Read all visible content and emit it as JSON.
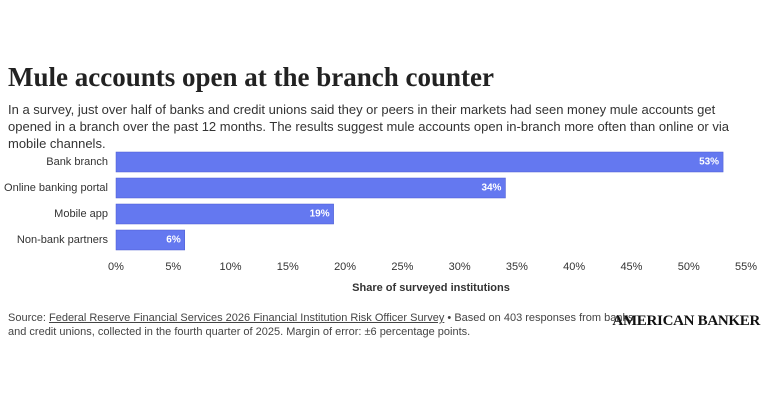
{
  "chart_data": {
    "type": "bar",
    "orientation": "horizontal",
    "title": "Mule accounts open at the branch counter",
    "subtitle": "In a survey, just over half of banks and credit unions said they or peers in their markets had seen money mule accounts get opened in a branch over the past 12 months. The results suggest mule accounts open in-branch more often than online or via mobile channels.",
    "categories": [
      "Bank branch",
      "Online banking portal",
      "Mobile app",
      "Non-bank partners"
    ],
    "values": [
      53,
      34,
      19,
      6
    ],
    "value_labels": [
      "53%",
      "34%",
      "19%",
      "6%"
    ],
    "color": "#6478f0",
    "xlim": [
      0,
      55
    ],
    "xticks": [
      {
        "value": 0,
        "label": "0%"
      },
      {
        "value": 5,
        "label": "5%"
      },
      {
        "value": 10,
        "label": "10%"
      },
      {
        "value": 15,
        "label": "15%"
      },
      {
        "value": 20,
        "label": "20%"
      },
      {
        "value": 25,
        "label": "25%"
      },
      {
        "value": 30,
        "label": "30%"
      },
      {
        "value": 35,
        "label": "35%"
      },
      {
        "value": 40,
        "label": "40%"
      },
      {
        "value": 45,
        "label": "45%"
      },
      {
        "value": 50,
        "label": "50%"
      },
      {
        "value": 55,
        "label": "55%"
      }
    ],
    "xlabel": "Share of surveyed institutions",
    "grid": false,
    "source": {
      "prefix": "Source:",
      "link": "Federal Reserve Financial Services 2026 Financial Institution Risk Officer Survey",
      "note": "• Based on 403 responses from banks and credit unions, collected in the fourth quarter of 2025. Margin of error: ±6 percentage points."
    },
    "brand": "AMERICAN BANKER"
  }
}
